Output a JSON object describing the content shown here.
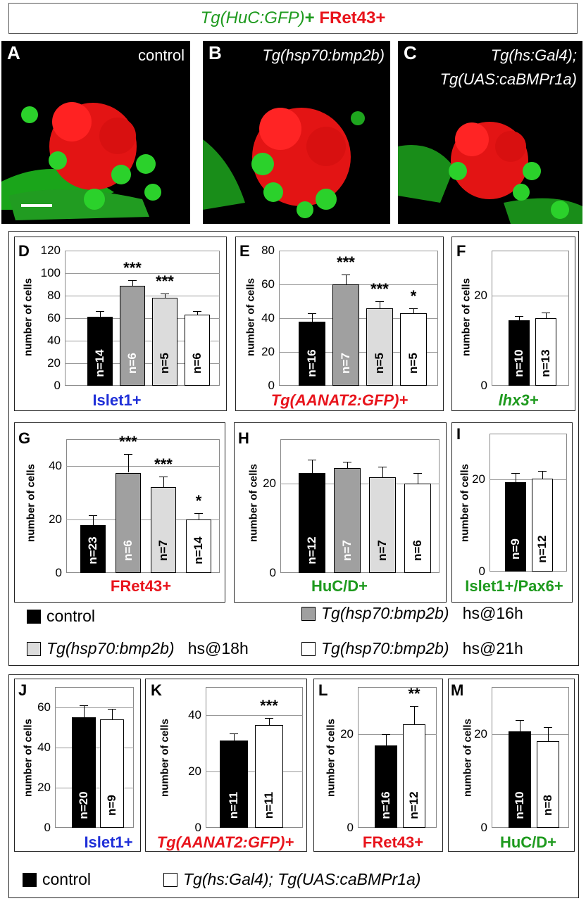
{
  "header": {
    "part1": "Tg(HuC:GFP)",
    "plus1": "+",
    "part2": "FRet43+"
  },
  "photos": [
    {
      "letter": "A",
      "caption_lines": [
        "control"
      ]
    },
    {
      "letter": "B",
      "caption_lines": [
        "Tg(hsp70:bmp2b)"
      ]
    },
    {
      "letter": "C",
      "caption_lines": [
        "Tg(hs:Gal4);",
        "Tg(UAS:caBMPr1a)"
      ]
    }
  ],
  "colors": {
    "control": "#000000",
    "hs16": "#a0a0a0",
    "hs18": "#dcdcdc",
    "hs21": "#ffffff",
    "blue": "#1f2fd8",
    "red": "#e8141c",
    "green": "#1e9a1e"
  },
  "chart_data": [
    {
      "panel": "D",
      "type": "bar",
      "ylabel": "number of cells",
      "ylim": [
        0,
        120
      ],
      "ticks": [
        0,
        20,
        40,
        60,
        80,
        100,
        120
      ],
      "caption": "Islet1+",
      "caption_color": "blue",
      "values": [
        61,
        89,
        78,
        63
      ],
      "errors": [
        5,
        5,
        4,
        3
      ],
      "n": [
        "n=14",
        "n=6",
        "n=5",
        "n=6"
      ],
      "stars": [
        "",
        "***",
        "***",
        ""
      ]
    },
    {
      "panel": "E",
      "type": "bar",
      "ylabel": "number of cells",
      "ylim": [
        0,
        80
      ],
      "ticks": [
        0,
        20,
        40,
        60,
        80
      ],
      "caption": "Tg(AANAT2:GFP)+",
      "caption_color": "red",
      "values": [
        38,
        60,
        46,
        43
      ],
      "errors": [
        5,
        6,
        4,
        3
      ],
      "n": [
        "n=16",
        "n=7",
        "n=5",
        "n=5"
      ],
      "stars": [
        "",
        "***",
        "***",
        "*"
      ]
    },
    {
      "panel": "F",
      "type": "bar",
      "ylabel": "number of cells",
      "ylim": [
        0,
        30
      ],
      "ticks": [
        0,
        20
      ],
      "caption": "lhx3+",
      "caption_color": "green",
      "values": [
        14.5,
        15
      ],
      "errors": [
        1,
        1.3
      ],
      "n": [
        "n=10",
        "n=13"
      ],
      "stars": [
        "",
        ""
      ]
    },
    {
      "panel": "G",
      "type": "bar",
      "ylabel": "number of cells",
      "ylim": [
        0,
        50
      ],
      "ticks": [
        0,
        20,
        40
      ],
      "caption": "FRet43+",
      "caption_color": "red",
      "values": [
        18,
        37.5,
        32,
        20
      ],
      "errors": [
        3.5,
        7,
        4,
        2.5
      ],
      "n": [
        "n=23",
        "n=6",
        "n=7",
        "n=14"
      ],
      "stars": [
        "",
        "***",
        "***",
        "*"
      ]
    },
    {
      "panel": "H",
      "type": "bar",
      "ylabel": "number of cells",
      "ylim": [
        0,
        30
      ],
      "ticks": [
        0,
        20
      ],
      "caption": "HuC/D+",
      "caption_color": "green",
      "values": [
        22.5,
        23.5,
        21.5,
        20
      ],
      "errors": [
        3,
        1.5,
        2.3,
        2.5
      ],
      "n": [
        "n=12",
        "n=7",
        "n=7",
        "n=6"
      ],
      "stars": [
        "",
        "",
        "",
        ""
      ]
    },
    {
      "panel": "I",
      "type": "bar",
      "ylabel": "number of cells",
      "ylim": [
        0,
        30
      ],
      "ticks": [
        0,
        20
      ],
      "caption": "Islet1+/Pax6+",
      "caption_color": "green",
      "values": [
        19.5,
        20.2
      ],
      "errors": [
        2,
        1.7
      ],
      "n": [
        "n=9",
        "n=12"
      ],
      "stars": [
        "",
        ""
      ]
    },
    {
      "panel": "J",
      "type": "bar",
      "ylabel": "number of cells",
      "ylim": [
        0,
        70
      ],
      "ticks": [
        0,
        20,
        40,
        60
      ],
      "caption": "Islet1+",
      "caption_color": "blue",
      "values": [
        55,
        54
      ],
      "errors": [
        6,
        5
      ],
      "n": [
        "n=20",
        "n=9"
      ],
      "stars": [
        "",
        ""
      ]
    },
    {
      "panel": "K",
      "type": "bar",
      "ylabel": "number of cells",
      "ylim": [
        0,
        50
      ],
      "ticks": [
        0,
        20,
        40
      ],
      "caption": "Tg(AANAT2:GFP)+",
      "caption_color": "red",
      "values": [
        31,
        36.5
      ],
      "errors": [
        2.5,
        2.5
      ],
      "n": [
        "n=11",
        "n=11"
      ],
      "stars": [
        "",
        "***"
      ]
    },
    {
      "panel": "L",
      "type": "bar",
      "ylabel": "number of cells",
      "ylim": [
        0,
        30
      ],
      "ticks": [
        0,
        20
      ],
      "caption": "FRet43+",
      "caption_color": "red",
      "values": [
        17.5,
        22
      ],
      "errors": [
        2.5,
        4
      ],
      "n": [
        "n=16",
        "n=12"
      ],
      "stars": [
        "",
        "**"
      ]
    },
    {
      "panel": "M",
      "type": "bar",
      "ylabel": "number of cells",
      "ylim": [
        0,
        30
      ],
      "ticks": [
        0,
        20
      ],
      "caption": "HuC/D+",
      "caption_color": "green",
      "values": [
        20.5,
        18.5
      ],
      "errors": [
        2.5,
        3
      ],
      "n": [
        "n=10",
        "n=8"
      ],
      "stars": [
        "",
        ""
      ]
    }
  ],
  "legend1": {
    "control": "control",
    "hs16_name": "Tg(hsp70:bmp2b)",
    "hs16_time": "hs@16h",
    "hs18_name": "Tg(hsp70:bmp2b)",
    "hs18_time": "hs@18h",
    "hs21_name": "Tg(hsp70:bmp2b)",
    "hs21_time": "hs@21h"
  },
  "legend2": {
    "control": "control",
    "ca": "Tg(hs:Gal4); Tg(UAS:caBMPr1a)"
  }
}
